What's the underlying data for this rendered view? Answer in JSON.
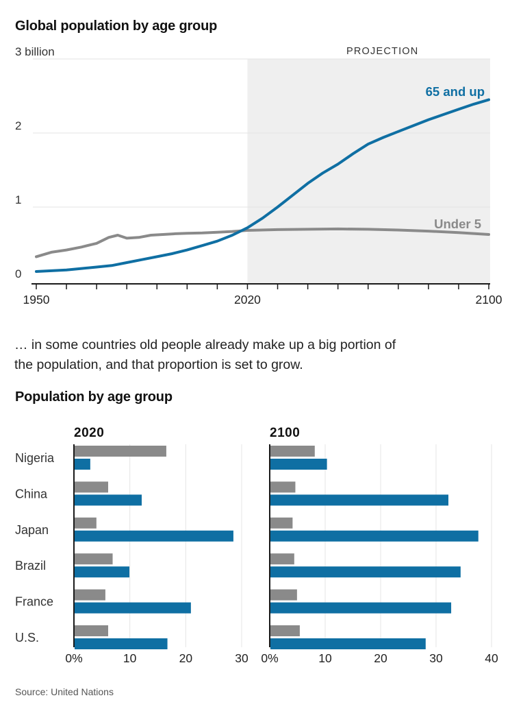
{
  "page": {
    "chart1_title": "Global population by age group",
    "narrative_line1": "… in some countries old people already make up a big portion of",
    "narrative_line2": "the population, and that proportion is set to grow.",
    "chart2_title": "Population by age group",
    "source": "Source: United Nations"
  },
  "colors": {
    "blue": "#0f6fa3",
    "gray": "#8a8a8a",
    "projection_bg": "#efefef",
    "gridline": "#e3e3e3",
    "bar_gridline": "#e5e5e5",
    "axis": "#1a1a1a",
    "tick_label": "#222222",
    "label": "#333333"
  },
  "chart_data": [
    {
      "type": "line",
      "title": "Global population by age group",
      "ylabel": "billion",
      "ylim": [
        0,
        3
      ],
      "y_ticks": [
        0,
        1,
        2,
        3
      ],
      "y_tick_labels": [
        "0",
        "1",
        "2",
        "3 billion"
      ],
      "x_range": [
        1950,
        2100
      ],
      "x_ticks_every": 10,
      "x_tick_labels": [
        "1950",
        "2020",
        "2100"
      ],
      "projection_label": "PROJECTION",
      "projection_start_year": 2020,
      "grid": true,
      "series": [
        {
          "name": "Under 5",
          "color_key": "gray",
          "x": [
            1950,
            1955,
            1960,
            1965,
            1970,
            1974,
            1977,
            1980,
            1984,
            1988,
            1992,
            1996,
            2000,
            2005,
            2010,
            2015,
            2020,
            2030,
            2040,
            2050,
            2060,
            2070,
            2080,
            2090,
            2100
          ],
          "values": [
            0.33,
            0.39,
            0.42,
            0.46,
            0.51,
            0.59,
            0.62,
            0.58,
            0.59,
            0.62,
            0.63,
            0.64,
            0.645,
            0.65,
            0.66,
            0.67,
            0.685,
            0.695,
            0.7,
            0.705,
            0.7,
            0.69,
            0.675,
            0.655,
            0.63
          ]
        },
        {
          "name": "65 and up",
          "color_key": "blue",
          "x": [
            1950,
            1955,
            1960,
            1965,
            1970,
            1975,
            1980,
            1985,
            1990,
            1995,
            2000,
            2005,
            2010,
            2015,
            2020,
            2025,
            2030,
            2035,
            2040,
            2045,
            2050,
            2055,
            2060,
            2065,
            2070,
            2075,
            2080,
            2085,
            2090,
            2095,
            2100
          ],
          "values": [
            0.13,
            0.14,
            0.15,
            0.17,
            0.19,
            0.21,
            0.25,
            0.29,
            0.33,
            0.37,
            0.42,
            0.48,
            0.54,
            0.62,
            0.72,
            0.85,
            1.0,
            1.16,
            1.32,
            1.46,
            1.58,
            1.72,
            1.85,
            1.94,
            2.02,
            2.1,
            2.18,
            2.25,
            2.32,
            2.39,
            2.45
          ]
        }
      ]
    },
    {
      "type": "bar",
      "title": "Population by age group",
      "orientation": "horizontal",
      "unit": "%",
      "categories": [
        "Nigeria",
        "China",
        "Japan",
        "Brazil",
        "France",
        "U.S."
      ],
      "panels": [
        {
          "label": "2020",
          "xlim": [
            0,
            30
          ],
          "x_ticks": [
            0,
            10,
            20,
            30
          ],
          "x_tick_labels": [
            "0%",
            "10",
            "20",
            "30"
          ],
          "series": [
            {
              "name": "Under 5",
              "color_key": "gray",
              "values": [
                16.4,
                6.0,
                3.9,
                6.8,
                5.5,
                6.0
              ]
            },
            {
              "name": "65 and up",
              "color_key": "blue",
              "values": [
                2.8,
                12.0,
                28.4,
                9.8,
                20.8,
                16.6
              ]
            }
          ]
        },
        {
          "label": "2100",
          "xlim": [
            0,
            40
          ],
          "x_ticks": [
            0,
            10,
            20,
            30,
            40
          ],
          "x_tick_labels": [
            "0%",
            "10",
            "20",
            "30",
            "40"
          ],
          "series": [
            {
              "name": "Under 5",
              "color_key": "gray",
              "values": [
                8.0,
                4.5,
                4.0,
                4.3,
                4.8,
                5.3
              ]
            },
            {
              "name": "65 and up",
              "color_key": "blue",
              "values": [
                10.2,
                32.1,
                37.5,
                34.3,
                32.6,
                28.0
              ]
            }
          ]
        }
      ]
    }
  ]
}
